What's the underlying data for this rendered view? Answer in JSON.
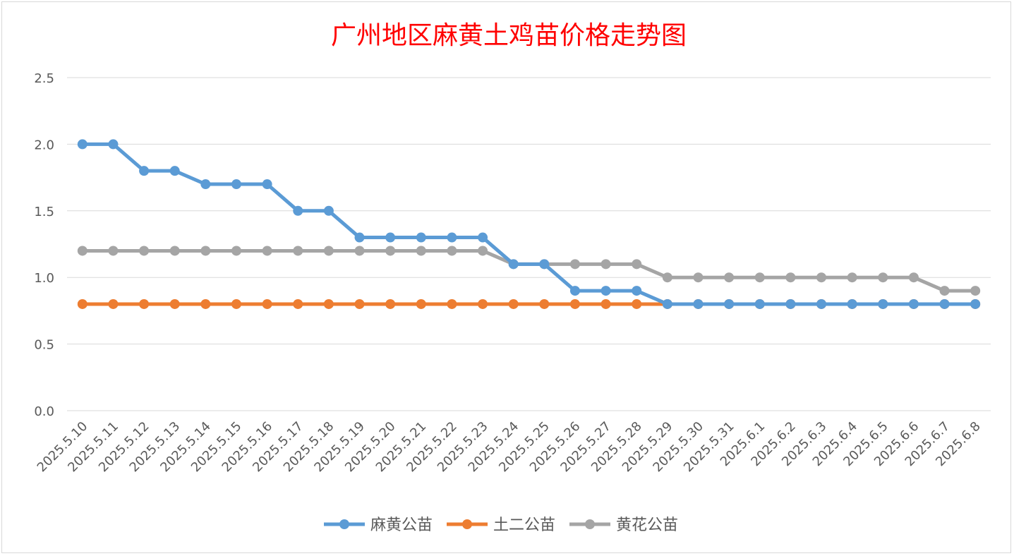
{
  "chart_data": {
    "type": "line",
    "title": "广州地区麻黄土鸡苗价格走势图",
    "xlabel": "",
    "ylabel": "",
    "ylim": [
      0,
      2.5
    ],
    "y_ticks": [
      "0.0",
      "0.5",
      "1.0",
      "1.5",
      "2.0",
      "2.5"
    ],
    "grid": "horizontal",
    "legend_position": "bottom",
    "categories": [
      "2025.5.10",
      "2025.5.11",
      "2025.5.12",
      "2025.5.13",
      "2025.5.14",
      "2025.5.15",
      "2025.5.16",
      "2025.5.17",
      "2025.5.18",
      "2025.5.19",
      "2025.5.20",
      "2025.5.21",
      "2025.5.22",
      "2025.5.23",
      "2025.5.24",
      "2025.5.25",
      "2025.5.26",
      "2025.5.27",
      "2025.5.28",
      "2025.5.29",
      "2025.5.30",
      "2025.5.31",
      "2025.6.1",
      "2025.6.2",
      "2025.6.3",
      "2025.6.4",
      "2025.6.5",
      "2025.6.6",
      "2025.6.7",
      "2025.6.8"
    ],
    "series": [
      {
        "name": "麻黄公苗",
        "color": "#5b9bd5",
        "values": [
          2.0,
          2.0,
          1.8,
          1.8,
          1.7,
          1.7,
          1.7,
          1.5,
          1.5,
          1.3,
          1.3,
          1.3,
          1.3,
          1.3,
          1.1,
          1.1,
          0.9,
          0.9,
          0.9,
          0.8,
          0.8,
          0.8,
          0.8,
          0.8,
          0.8,
          0.8,
          0.8,
          0.8,
          0.8,
          0.8
        ]
      },
      {
        "name": "土二公苗",
        "color": "#ed7d31",
        "values": [
          0.8,
          0.8,
          0.8,
          0.8,
          0.8,
          0.8,
          0.8,
          0.8,
          0.8,
          0.8,
          0.8,
          0.8,
          0.8,
          0.8,
          0.8,
          0.8,
          0.8,
          0.8,
          0.8,
          0.8,
          0.8,
          0.8,
          0.8,
          0.8,
          0.8,
          0.8,
          0.8,
          0.8,
          0.8,
          0.8
        ]
      },
      {
        "name": "黄花公苗",
        "color": "#a5a5a5",
        "values": [
          1.2,
          1.2,
          1.2,
          1.2,
          1.2,
          1.2,
          1.2,
          1.2,
          1.2,
          1.2,
          1.2,
          1.2,
          1.2,
          1.2,
          1.1,
          1.1,
          1.1,
          1.1,
          1.1,
          1.0,
          1.0,
          1.0,
          1.0,
          1.0,
          1.0,
          1.0,
          1.0,
          1.0,
          0.9,
          0.9
        ]
      }
    ],
    "colors": {
      "title": "#ff0000",
      "grid": "#d9d9d9",
      "text": "#595959"
    }
  }
}
